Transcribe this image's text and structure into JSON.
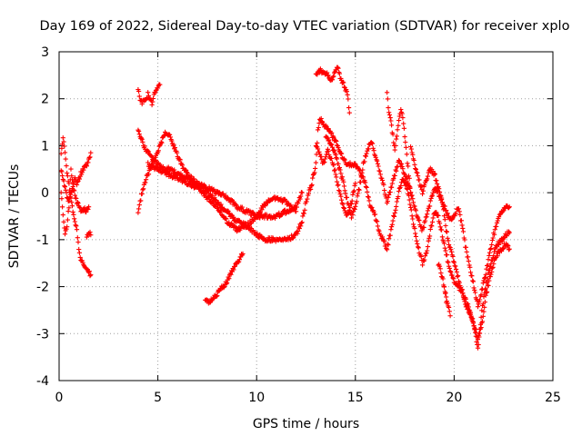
{
  "chart_data": {
    "type": "scatter",
    "title": "Day 169 of 2022, Sidereal Day-to-day VTEC variation (SDTVAR) for receiver xplo",
    "xlabel": "GPS time / hours",
    "ylabel": "SDTVAR / TECUs",
    "xlim": [
      0,
      25
    ],
    "ylim": [
      -4,
      3
    ],
    "xticks": [
      0,
      5,
      10,
      15,
      20,
      25
    ],
    "yticks": [
      -4,
      -3,
      -2,
      -1,
      0,
      1,
      2,
      3
    ],
    "grid": true,
    "marker": "plus",
    "color": "#ff0000",
    "series": [
      {
        "name": "trace-1",
        "points": [
          [
            0.1,
            0.8
          ],
          [
            0.2,
            1.2
          ],
          [
            0.3,
            0.9
          ],
          [
            0.4,
            0.4
          ],
          [
            0.5,
            0.2
          ],
          [
            0.6,
            -0.1
          ],
          [
            0.7,
            -0.4
          ],
          [
            0.8,
            -0.6
          ],
          [
            0.9,
            -0.8
          ],
          [
            1.0,
            -1.2
          ],
          [
            1.1,
            -1.4
          ],
          [
            1.2,
            -1.5
          ],
          [
            1.3,
            -1.6
          ],
          [
            1.4,
            -1.65
          ],
          [
            1.5,
            -1.7
          ],
          [
            1.6,
            -1.75
          ]
        ]
      },
      {
        "name": "trace-2",
        "points": [
          [
            0.1,
            0.5
          ],
          [
            0.2,
            0.3
          ],
          [
            0.3,
            0.1
          ],
          [
            0.4,
            -0.1
          ],
          [
            0.5,
            -0.2
          ],
          [
            0.6,
            0.0
          ],
          [
            0.7,
            0.1
          ],
          [
            0.8,
            0.3
          ],
          [
            0.9,
            0.2
          ],
          [
            1.0,
            0.3
          ],
          [
            1.1,
            0.4
          ],
          [
            1.2,
            0.5
          ],
          [
            1.3,
            0.55
          ],
          [
            1.4,
            0.6
          ],
          [
            1.5,
            0.7
          ],
          [
            1.6,
            0.85
          ]
        ]
      },
      {
        "name": "trace-3",
        "points": [
          [
            0.1,
            0.0
          ],
          [
            0.2,
            -0.5
          ],
          [
            0.3,
            -0.9
          ],
          [
            0.4,
            -0.7
          ],
          [
            0.5,
            -0.3
          ],
          [
            0.6,
            0.5
          ],
          [
            0.7,
            0.2
          ],
          [
            0.8,
            -0.1
          ],
          [
            0.9,
            -0.2
          ],
          [
            1.0,
            -0.3
          ],
          [
            1.1,
            -0.4
          ],
          [
            1.2,
            -0.4
          ],
          [
            1.3,
            -0.35
          ],
          [
            1.4,
            -0.4
          ],
          [
            1.5,
            -0.3
          ]
        ]
      },
      {
        "name": "trace-4",
        "points": [
          [
            1.4,
            -0.95
          ],
          [
            1.5,
            -0.85
          ],
          [
            1.6,
            -0.9
          ]
        ]
      },
      {
        "name": "trace-5",
        "points": [
          [
            4.0,
            2.2
          ],
          [
            4.1,
            2.0
          ],
          [
            4.2,
            1.9
          ],
          [
            4.3,
            2.0
          ],
          [
            4.4,
            1.95
          ],
          [
            4.5,
            2.1
          ],
          [
            4.6,
            2.0
          ],
          [
            4.7,
            1.9
          ],
          [
            4.8,
            2.1
          ],
          [
            4.9,
            2.2
          ],
          [
            5.0,
            2.25
          ],
          [
            5.1,
            2.3
          ]
        ]
      },
      {
        "name": "trace-6",
        "points": [
          [
            4.0,
            -0.4
          ],
          [
            4.2,
            0.0
          ],
          [
            4.4,
            0.3
          ],
          [
            4.6,
            0.5
          ],
          [
            4.8,
            0.7
          ],
          [
            5.0,
            0.9
          ],
          [
            5.2,
            1.1
          ],
          [
            5.4,
            1.3
          ],
          [
            5.6,
            1.2
          ],
          [
            5.8,
            1.0
          ],
          [
            6.0,
            0.8
          ],
          [
            6.2,
            0.6
          ],
          [
            6.5,
            0.4
          ],
          [
            7.0,
            0.2
          ],
          [
            7.5,
            0.0
          ],
          [
            8.0,
            -0.2
          ],
          [
            8.5,
            -0.4
          ],
          [
            9.0,
            -0.6
          ],
          [
            9.5,
            -0.7
          ],
          [
            10.0,
            -0.9
          ],
          [
            10.5,
            -1.0
          ],
          [
            11.0,
            -1.0
          ],
          [
            11.5,
            -1.0
          ],
          [
            12.0,
            -0.9
          ],
          [
            12.3,
            -0.6
          ],
          [
            12.5,
            -0.2
          ],
          [
            12.8,
            0.2
          ],
          [
            13.0,
            0.6
          ],
          [
            13.1,
            1.3
          ],
          [
            13.2,
            1.6
          ],
          [
            13.3,
            1.5
          ],
          [
            13.5,
            1.4
          ],
          [
            13.7,
            1.3
          ],
          [
            14.0,
            1.1
          ],
          [
            14.3,
            0.8
          ],
          [
            14.6,
            0.6
          ],
          [
            15.0,
            0.6
          ],
          [
            15.3,
            0.4
          ],
          [
            15.5,
            0.2
          ],
          [
            15.7,
            -0.2
          ],
          [
            16.0,
            -0.5
          ],
          [
            16.2,
            -0.8
          ],
          [
            16.4,
            -1.0
          ],
          [
            16.6,
            -1.2
          ],
          [
            16.8,
            -0.8
          ],
          [
            17.0,
            -0.4
          ],
          [
            17.2,
            0.0
          ],
          [
            17.4,
            0.3
          ],
          [
            17.6,
            0.1
          ],
          [
            17.8,
            -0.3
          ],
          [
            18.0,
            -0.8
          ],
          [
            18.2,
            -1.2
          ],
          [
            18.4,
            -1.5
          ],
          [
            18.6,
            -1.3
          ],
          [
            18.8,
            -0.8
          ],
          [
            19.0,
            -0.4
          ],
          [
            19.2,
            -0.5
          ],
          [
            19.4,
            -0.9
          ],
          [
            19.6,
            -1.3
          ],
          [
            19.8,
            -1.7
          ],
          [
            20.0,
            -1.9
          ],
          [
            20.2,
            -2.0
          ],
          [
            20.4,
            -2.1
          ],
          [
            20.6,
            -2.3
          ],
          [
            20.8,
            -2.5
          ],
          [
            21.0,
            -2.8
          ],
          [
            21.2,
            -3.3
          ],
          [
            21.3,
            -3.0
          ],
          [
            21.4,
            -2.5
          ],
          [
            21.6,
            -2.0
          ],
          [
            21.8,
            -1.6
          ],
          [
            22.0,
            -1.3
          ],
          [
            22.2,
            -1.1
          ],
          [
            22.4,
            -1.0
          ],
          [
            22.6,
            -0.9
          ],
          [
            22.8,
            -0.85
          ]
        ]
      },
      {
        "name": "trace-7",
        "points": [
          [
            4.0,
            1.3
          ],
          [
            4.2,
            1.1
          ],
          [
            4.4,
            0.9
          ],
          [
            4.6,
            0.8
          ],
          [
            4.8,
            0.7
          ],
          [
            5.0,
            0.6
          ],
          [
            5.3,
            0.5
          ],
          [
            5.6,
            0.5
          ],
          [
            6.0,
            0.4
          ],
          [
            6.5,
            0.3
          ],
          [
            7.0,
            0.2
          ],
          [
            7.5,
            0.1
          ],
          [
            8.0,
            0.0
          ],
          [
            8.5,
            -0.1
          ],
          [
            9.0,
            -0.3
          ],
          [
            9.5,
            -0.4
          ],
          [
            10.0,
            -0.5
          ],
          [
            10.5,
            -0.5
          ],
          [
            11.0,
            -0.5
          ],
          [
            11.5,
            -0.4
          ],
          [
            12.0,
            -0.3
          ],
          [
            12.3,
            0.0
          ]
        ]
      },
      {
        "name": "trace-8",
        "points": [
          [
            4.5,
            0.6
          ],
          [
            5.0,
            0.5
          ],
          [
            5.5,
            0.4
          ],
          [
            6.0,
            0.3
          ],
          [
            6.5,
            0.2
          ],
          [
            7.0,
            0.1
          ],
          [
            7.5,
            -0.1
          ],
          [
            8.0,
            -0.3
          ],
          [
            8.5,
            -0.6
          ],
          [
            9.0,
            -0.8
          ],
          [
            9.5,
            -0.7
          ],
          [
            10.0,
            -0.5
          ],
          [
            10.5,
            -0.2
          ],
          [
            11.0,
            -0.1
          ],
          [
            11.5,
            -0.2
          ],
          [
            12.0,
            -0.4
          ]
        ]
      },
      {
        "name": "trace-9",
        "points": [
          [
            7.4,
            -2.3
          ],
          [
            7.6,
            -2.35
          ],
          [
            7.8,
            -2.25
          ],
          [
            8.0,
            -2.15
          ],
          [
            8.2,
            -2.05
          ],
          [
            8.4,
            -1.95
          ],
          [
            8.6,
            -1.8
          ],
          [
            8.8,
            -1.65
          ],
          [
            9.0,
            -1.5
          ],
          [
            9.2,
            -1.35
          ],
          [
            9.3,
            -1.3
          ]
        ]
      },
      {
        "name": "trace-10",
        "points": [
          [
            13.0,
            2.5
          ],
          [
            13.2,
            2.6
          ],
          [
            13.4,
            2.55
          ],
          [
            13.6,
            2.5
          ],
          [
            13.8,
            2.4
          ],
          [
            14.0,
            2.6
          ],
          [
            14.1,
            2.7
          ],
          [
            14.2,
            2.5
          ],
          [
            14.3,
            2.4
          ],
          [
            14.4,
            2.3
          ],
          [
            14.5,
            2.2
          ],
          [
            14.6,
            2.1
          ],
          [
            14.7,
            1.7
          ]
        ]
      },
      {
        "name": "trace-11",
        "points": [
          [
            13.5,
            1.2
          ],
          [
            13.8,
            1.0
          ],
          [
            14.0,
            0.8
          ],
          [
            14.2,
            0.5
          ],
          [
            14.4,
            0.2
          ],
          [
            14.6,
            -0.2
          ],
          [
            14.8,
            -0.5
          ],
          [
            15.0,
            -0.3
          ],
          [
            15.2,
            0.1
          ],
          [
            15.4,
            0.6
          ],
          [
            15.6,
            0.9
          ],
          [
            15.8,
            1.1
          ],
          [
            16.0,
            0.8
          ],
          [
            16.2,
            0.5
          ],
          [
            16.4,
            0.2
          ],
          [
            16.6,
            -0.2
          ],
          [
            16.8,
            0.1
          ],
          [
            17.0,
            0.4
          ],
          [
            17.2,
            0.7
          ],
          [
            17.4,
            0.5
          ],
          [
            17.6,
            0.3
          ],
          [
            17.8,
            0.0
          ],
          [
            18.0,
            -0.3
          ],
          [
            18.2,
            -0.6
          ],
          [
            18.4,
            -0.8
          ],
          [
            18.6,
            -0.5
          ],
          [
            18.8,
            -0.2
          ],
          [
            19.0,
            0.1
          ],
          [
            19.2,
            0.0
          ],
          [
            19.4,
            -0.2
          ],
          [
            19.6,
            -0.4
          ],
          [
            19.8,
            -0.6
          ],
          [
            20.0,
            -0.5
          ],
          [
            20.2,
            -0.3
          ],
          [
            20.4,
            -0.7
          ],
          [
            20.6,
            -1.2
          ],
          [
            20.8,
            -1.6
          ],
          [
            21.0,
            -2.0
          ],
          [
            21.2,
            -2.4
          ],
          [
            21.4,
            -2.1
          ],
          [
            21.6,
            -1.7
          ],
          [
            21.8,
            -1.3
          ],
          [
            22.0,
            -0.9
          ],
          [
            22.2,
            -0.6
          ],
          [
            22.4,
            -0.4
          ],
          [
            22.6,
            -0.3
          ],
          [
            22.8,
            -0.3
          ]
        ]
      },
      {
        "name": "trace-12",
        "points": [
          [
            16.6,
            2.1
          ],
          [
            16.7,
            1.7
          ],
          [
            16.8,
            1.5
          ],
          [
            16.9,
            1.2
          ],
          [
            17.0,
            0.9
          ],
          [
            17.2,
            1.5
          ],
          [
            17.3,
            1.8
          ],
          [
            17.4,
            1.6
          ],
          [
            17.5,
            1.2
          ],
          [
            17.6,
            0.8
          ],
          [
            17.7,
            0.4
          ],
          [
            17.8,
            0.0
          ]
        ]
      },
      {
        "name": "trace-13",
        "points": [
          [
            17.8,
            1.0
          ],
          [
            18.0,
            0.6
          ],
          [
            18.2,
            0.3
          ],
          [
            18.4,
            0.0
          ],
          [
            18.6,
            0.3
          ],
          [
            18.8,
            0.5
          ],
          [
            19.0,
            0.4
          ],
          [
            19.2,
            0.1
          ],
          [
            19.4,
            -0.2
          ],
          [
            19.6,
            -0.8
          ],
          [
            19.8,
            -1.2
          ],
          [
            20.0,
            -1.5
          ],
          [
            20.2,
            -1.8
          ],
          [
            20.4,
            -2.1
          ],
          [
            20.6,
            -2.4
          ],
          [
            20.8,
            -2.6
          ],
          [
            21.0,
            -2.8
          ],
          [
            21.2,
            -3.1
          ],
          [
            21.4,
            -2.8
          ],
          [
            21.6,
            -2.2
          ],
          [
            21.8,
            -1.8
          ],
          [
            22.0,
            -1.5
          ],
          [
            22.2,
            -1.3
          ],
          [
            22.4,
            -1.2
          ],
          [
            22.6,
            -1.1
          ],
          [
            22.8,
            -1.2
          ]
        ]
      },
      {
        "name": "trace-14",
        "points": [
          [
            13.0,
            1.0
          ],
          [
            13.2,
            0.8
          ],
          [
            13.4,
            0.6
          ],
          [
            13.6,
            0.9
          ],
          [
            13.8,
            0.7
          ],
          [
            14.0,
            0.4
          ],
          [
            14.2,
            0.0
          ],
          [
            14.4,
            -0.3
          ],
          [
            14.6,
            -0.5
          ],
          [
            14.8,
            -0.2
          ],
          [
            15.0,
            0.2
          ]
        ]
      },
      {
        "name": "trace-15",
        "points": [
          [
            19.2,
            -1.5
          ],
          [
            19.4,
            -1.8
          ],
          [
            19.6,
            -2.2
          ],
          [
            19.8,
            -2.6
          ],
          [
            19.6,
            -2.3
          ],
          [
            19.5,
            -2.0
          ]
        ]
      }
    ]
  }
}
